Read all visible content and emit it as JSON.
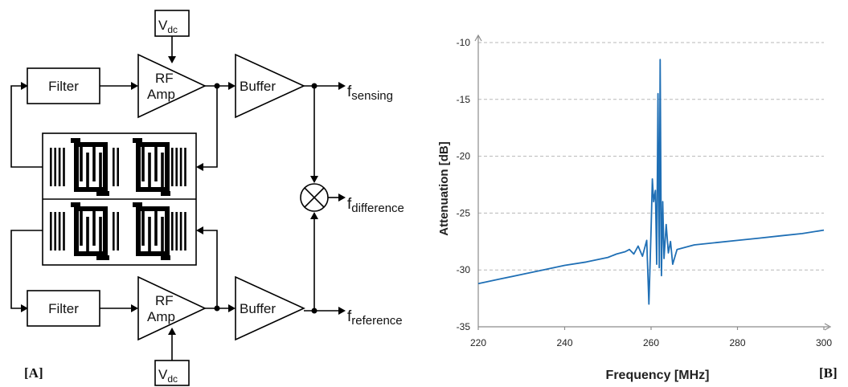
{
  "diagram": {
    "filter_top": "Filter",
    "filter_bottom": "Filter",
    "amp_top_line1": "RF",
    "amp_top_line2": "Amp",
    "amp_bottom_line1": "RF",
    "amp_bottom_line2": "Amp",
    "buffer_top": "Buffer",
    "buffer_bottom": "Buffer",
    "vdc_top_main": "V",
    "vdc_top_sub": "dc",
    "vdc_bottom_main": "V",
    "vdc_bottom_sub": "dc",
    "out_sensing_main": "f",
    "out_sensing_sub": "sensing",
    "out_difference_main": "f",
    "out_difference_sub": "difference",
    "out_reference_main": "f",
    "out_reference_sub": "reference",
    "panel_a_label": "[A]"
  },
  "panel_b_label": "[B]",
  "chart_data": {
    "type": "line",
    "title": "",
    "xlabel": "Frequency [MHz]",
    "ylabel": "Attenuation [dB]",
    "xlim": [
      220,
      300
    ],
    "ylim": [
      -35,
      -10
    ],
    "xticks": [
      220,
      240,
      260,
      280,
      300
    ],
    "yticks": [
      -35,
      -30,
      -25,
      -20,
      -15,
      -10
    ],
    "grid": "horizontal dashed",
    "line_color": "#1f6fb5",
    "series": [
      {
        "x": [
          220,
          225,
          230,
          235,
          240,
          245,
          250,
          252,
          254,
          255,
          256,
          257,
          258,
          259,
          259.5,
          260,
          260.3,
          260.6,
          261,
          261.3,
          261.6,
          261.9,
          262.1,
          262.4,
          262.7,
          263,
          263.5,
          264,
          264.5,
          265,
          266,
          268,
          270,
          275,
          280,
          285,
          290,
          295,
          300
        ],
        "y": [
          -31.2,
          -30.8,
          -30.4,
          -30.0,
          -29.6,
          -29.3,
          -28.9,
          -28.6,
          -28.4,
          -28.2,
          -28.6,
          -27.9,
          -28.8,
          -27.4,
          -33.0,
          -26.5,
          -22.0,
          -24.0,
          -23.0,
          -29.5,
          -14.5,
          -29.8,
          -11.5,
          -30.5,
          -24.0,
          -29.0,
          -26.0,
          -28.5,
          -27.5,
          -29.5,
          -28.2,
          -28.0,
          -27.8,
          -27.6,
          -27.4,
          -27.2,
          -27.0,
          -26.8,
          -26.5
        ]
      }
    ]
  }
}
